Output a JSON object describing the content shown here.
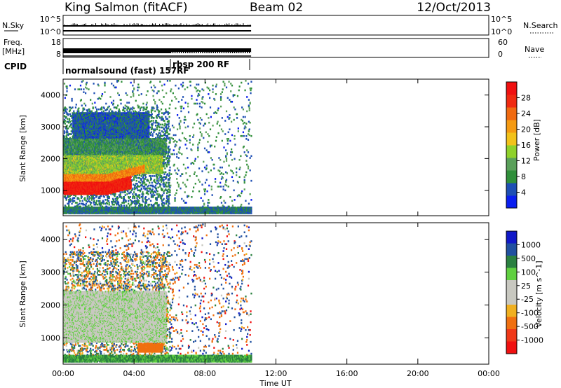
{
  "header": {
    "station": "King Salmon (fitACF)",
    "beam": "Beam 02",
    "date": "12/Oct/2013"
  },
  "side_labels": {
    "nsky": "N.Sky",
    "nsearch": "N.Search",
    "freq": "Freq.",
    "freq_unit": "[MHz]",
    "nave": "Nave",
    "cpid": "CPID"
  },
  "strip_ticks": {
    "nsky_left": [
      "10^5",
      "10^0"
    ],
    "nsky_right": [
      "10^5",
      "10^0"
    ],
    "freq_left": [
      "18",
      "8"
    ],
    "nave_right": [
      "60",
      "0"
    ]
  },
  "cpid_labels": [
    "normalsound (fast) 157",
    "rbsp 200 RF",
    "RF"
  ],
  "colors": {
    "power_scale": [
      "#0a1ef0",
      "#1e4fb4",
      "#2f8f3a",
      "#5aa05a",
      "#8fd12a",
      "#f2c21a",
      "#f59a12",
      "#f06a10",
      "#f02a10",
      "#f01010"
    ],
    "velocity_scale": [
      "#1018c8",
      "#2050a0",
      "#2a8040",
      "#60d040",
      "#c8c8c0",
      "#c8c8c0",
      "#f0b020",
      "#f07010",
      "#f03818",
      "#f01010"
    ]
  },
  "chart_data": [
    {
      "type": "heatmap",
      "name": "power-panel",
      "ylabel": "Slant Range [km]",
      "xlabel": "",
      "xlim": [
        "00:00",
        "24:00"
      ],
      "ylim": [
        200,
        4500
      ],
      "yticks": [
        "1000",
        "2000",
        "3000",
        "4000"
      ],
      "colorbar": {
        "label": "Power [dB]",
        "ticks": [
          "4",
          "8",
          "12",
          "16",
          "20",
          "24",
          "28"
        ],
        "range": [
          0,
          30
        ]
      },
      "data_extent": {
        "start_hour": 0,
        "end_hour": 10.6
      },
      "bands": [
        {
          "h0": 0.0,
          "h1": 3.8,
          "r0": 850,
          "r1": 1250,
          "value": 27
        },
        {
          "h0": 0.0,
          "h1": 4.6,
          "r0": 1250,
          "r1": 1500,
          "value": 21
        },
        {
          "h0": 0.0,
          "h1": 5.6,
          "r0": 1500,
          "r1": 2100,
          "value": 13
        },
        {
          "h0": 0.0,
          "h1": 5.8,
          "r0": 2100,
          "r1": 2600,
          "value": 8
        },
        {
          "h0": 0.5,
          "h1": 4.8,
          "r0": 2600,
          "r1": 3400,
          "value": 5
        },
        {
          "h0": 0.0,
          "h1": 10.6,
          "r0": 250,
          "r1": 450,
          "value": 6
        }
      ]
    },
    {
      "type": "heatmap",
      "name": "velocity-panel",
      "ylabel": "Slant Range [km]",
      "xlabel": "Time UT",
      "xlim": [
        "00:00",
        "24:00"
      ],
      "ylim": [
        200,
        4500
      ],
      "yticks": [
        "1000",
        "2000",
        "3000",
        "4000"
      ],
      "xticks": [
        "00:00",
        "04:00",
        "08:00",
        "12:00",
        "16:00",
        "20:00",
        "00:00"
      ],
      "colorbar": {
        "label": "Velocity [m s^-1]",
        "ticks": [
          "1000",
          "500",
          "100",
          "25",
          "-25",
          "-100",
          "-500",
          "-1000"
        ]
      },
      "data_extent": {
        "start_hour": 0,
        "end_hour": 10.6
      },
      "bands": [
        {
          "h0": 0.0,
          "h1": 5.8,
          "r0": 850,
          "r1": 2400,
          "value": 0
        },
        {
          "h0": 4.2,
          "h1": 5.6,
          "r0": 550,
          "r1": 800,
          "value": -150
        },
        {
          "h0": 0.0,
          "h1": 10.6,
          "r0": 250,
          "r1": 450,
          "value": 30
        }
      ]
    }
  ]
}
